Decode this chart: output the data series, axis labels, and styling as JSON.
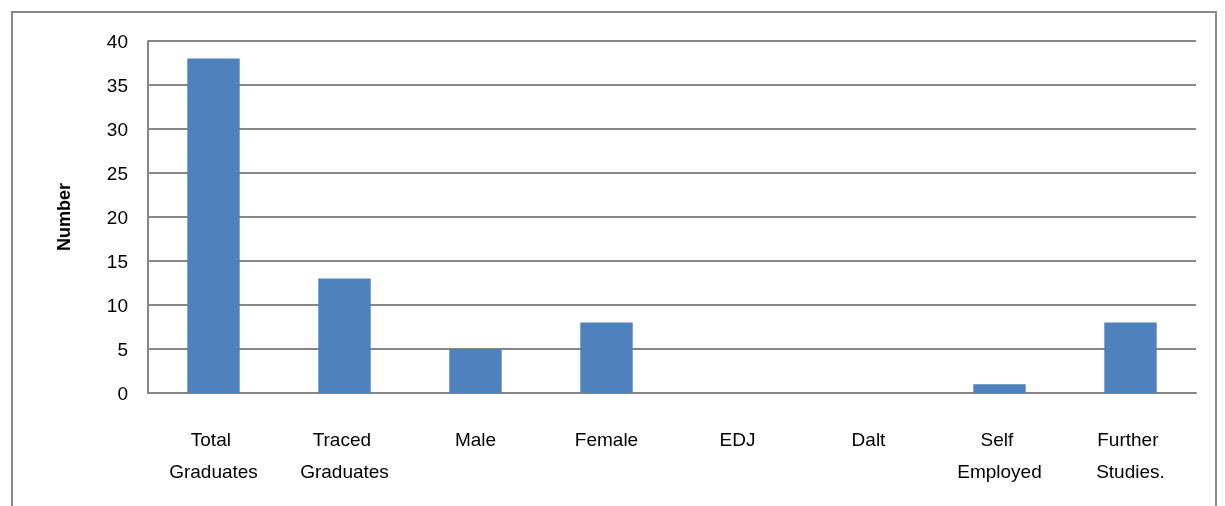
{
  "chart_data": {
    "type": "bar",
    "ylabel": "Number",
    "categories": [
      "Total Graduates",
      "Traced Graduates",
      "Male",
      "Female",
      "EDJ",
      "Dalt",
      "Self Employed",
      "Further Studies."
    ],
    "values": [
      38,
      13,
      5,
      8,
      0,
      0,
      1,
      8
    ],
    "color": "#4f81bd",
    "ylim": [
      0,
      40
    ],
    "yticks": [
      0,
      5,
      10,
      15,
      20,
      25,
      30,
      35,
      40
    ],
    "grid": "y"
  }
}
